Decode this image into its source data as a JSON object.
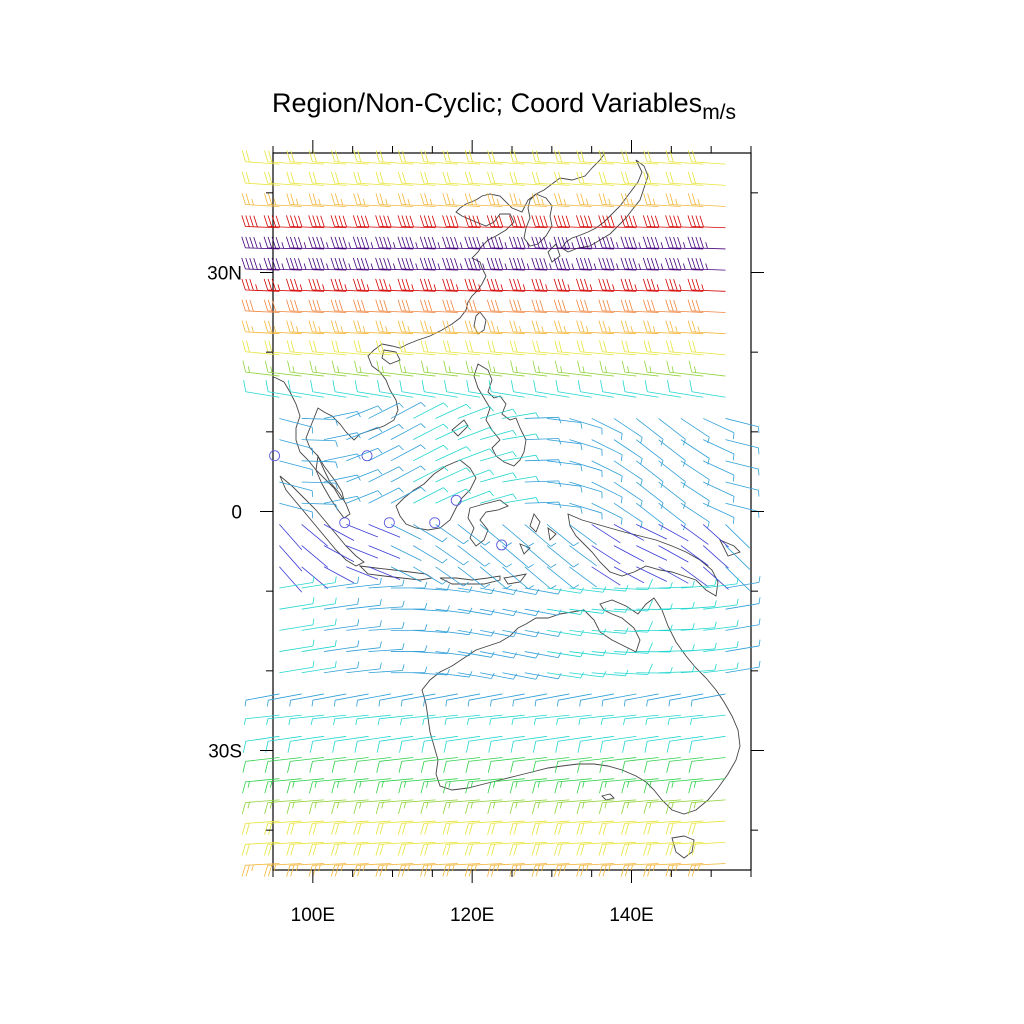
{
  "title": "Region/Non-Cyclic; Coord Variables",
  "title_units": "m/s",
  "axes": {
    "lat_ticks": [
      {
        "lat": 30,
        "label": "30N"
      },
      {
        "lat": 0,
        "label": "0"
      },
      {
        "lat": -30,
        "label": "30S"
      }
    ],
    "lon_ticks": [
      {
        "lon": 100,
        "label": "100E"
      },
      {
        "lon": 120,
        "label": "120E"
      },
      {
        "lon": 140,
        "label": "140E"
      }
    ],
    "lon_range": [
      95,
      155
    ],
    "lat_range": [
      -45,
      45
    ]
  },
  "chart_data": {
    "type": "wind-barb-map",
    "units": "m/s",
    "region": {
      "lon": [
        95,
        155
      ],
      "lat": [
        -45,
        45
      ]
    },
    "projection": "cylindrical-equidistant",
    "grid_spacing_deg": 2.8,
    "color_scale": [
      "#3b3bd9",
      "#2f9fd8",
      "#21d6cf",
      "#2fd04a",
      "#8fd33a",
      "#e7e43a",
      "#f3b63a",
      "#f0843e",
      "#ee4a3a",
      "#d40000",
      "#8a0044",
      "#45007a"
    ],
    "circles_calm": [
      [
        95.2,
        7
      ],
      [
        106.8,
        7
      ],
      [
        104,
        -1.4
      ],
      [
        109.6,
        -1.4
      ],
      [
        115.3,
        -1.4
      ],
      [
        118,
        1.4
      ],
      [
        123.7,
        -4.2
      ]
    ]
  }
}
